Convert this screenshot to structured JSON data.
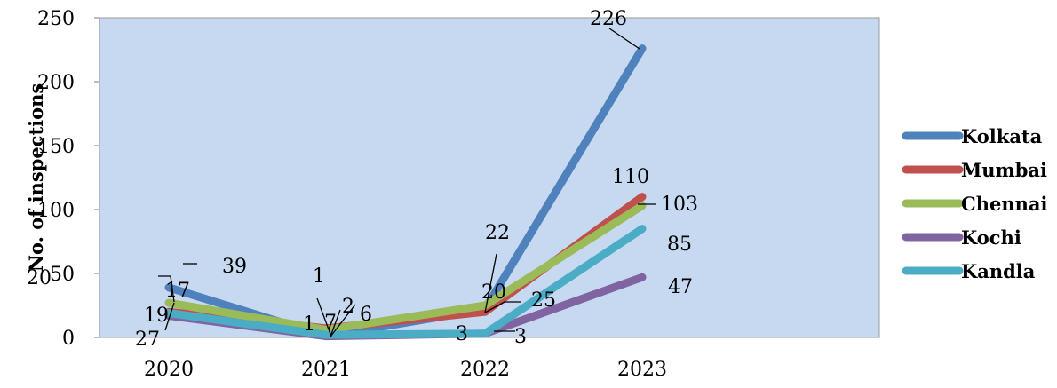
{
  "chart_data": {
    "type": "line",
    "categories": [
      "2020",
      "2021",
      "2022",
      "2023"
    ],
    "ylabel": "No. of inspections",
    "xlabel": "",
    "ylim": [
      0,
      250
    ],
    "yticks": [
      0,
      50,
      100,
      150,
      200,
      250
    ],
    "grid": false,
    "legend_position": "right",
    "plot_background": "#c6d9f1",
    "series": [
      {
        "name": "Kolkata",
        "color": "#4f81bd",
        "values": [
          39,
          1,
          22,
          226
        ]
      },
      {
        "name": "Mumbai",
        "color": "#c0504d",
        "values": [
          20,
          7,
          20,
          110
        ]
      },
      {
        "name": "Chennai",
        "color": "#9bbb59",
        "values": [
          27,
          6,
          25,
          103
        ]
      },
      {
        "name": "Kochi",
        "color": "#8064a2",
        "values": [
          17,
          1,
          3,
          47
        ]
      },
      {
        "name": "Kandla",
        "color": "#4bacc6",
        "values": [
          19,
          2,
          3,
          85
        ]
      }
    ],
    "data_labels": [
      {
        "series": "Kolkata",
        "index": 0,
        "text": "39"
      },
      {
        "series": "Kolkata",
        "index": 1,
        "text": "1"
      },
      {
        "series": "Kolkata",
        "index": 2,
        "text": "22"
      },
      {
        "series": "Kolkata",
        "index": 3,
        "text": "226"
      },
      {
        "series": "Mumbai",
        "index": 0,
        "text": "20"
      },
      {
        "series": "Mumbai",
        "index": 1,
        "text": "7"
      },
      {
        "series": "Mumbai",
        "index": 2,
        "text": "20"
      },
      {
        "series": "Mumbai",
        "index": 3,
        "text": "110"
      },
      {
        "series": "Chennai",
        "index": 0,
        "text": "27"
      },
      {
        "series": "Chennai",
        "index": 1,
        "text": "6"
      },
      {
        "series": "Chennai",
        "index": 2,
        "text": "25"
      },
      {
        "series": "Chennai",
        "index": 3,
        "text": "103"
      },
      {
        "series": "Kochi",
        "index": 0,
        "text": "17"
      },
      {
        "series": "Kochi",
        "index": 1,
        "text": "1"
      },
      {
        "series": "Kochi",
        "index": 2,
        "text": "3"
      },
      {
        "series": "Kochi",
        "index": 3,
        "text": "47"
      },
      {
        "series": "Kandla",
        "index": 0,
        "text": "19"
      },
      {
        "series": "Kandla",
        "index": 1,
        "text": "2"
      },
      {
        "series": "Kandla",
        "index": 2,
        "text": "3"
      },
      {
        "series": "Kandla",
        "index": 3,
        "text": "85"
      }
    ]
  }
}
